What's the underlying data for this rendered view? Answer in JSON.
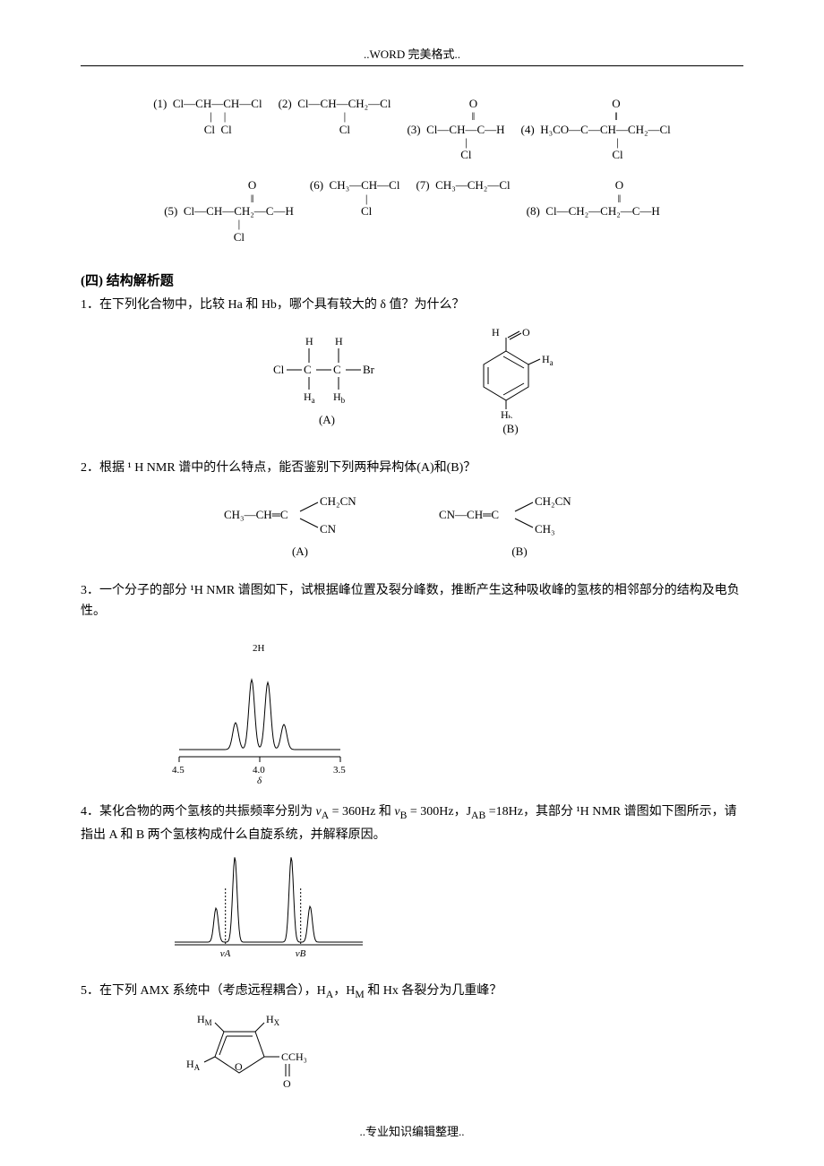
{
  "header": "..WORD 完美格式..",
  "footer": "..专业知识编辑整理..",
  "top_molecules_row1": [
    {
      "num": "(1)",
      "formula": "Cl—CH—CH—Cl\n     |    |\n     Cl   Cl"
    },
    {
      "num": "(2)",
      "formula": "Cl—CH—CH₂—Cl\n     |\n     Cl"
    },
    {
      "num": "(3)",
      "formula": "          O\n          ‖\nCl—CH—C—H\n     |\n     Cl"
    },
    {
      "num": "(4)",
      "formula": "          O\n          ‖\nH₃CO—C—CH—CH₂—Cl\n           |\n           Cl"
    }
  ],
  "top_molecules_row2": [
    {
      "num": "(5)",
      "formula": "               O\n               ‖\nCl—CH—CH₂—C—H\n     |\n     Cl"
    },
    {
      "num": "(6)",
      "formula": "CH₃—CH—Cl\n      |\n      Cl"
    },
    {
      "num": "(7)",
      "formula": "CH₃—CH₂—Cl"
    },
    {
      "num": "(8)",
      "formula": "               O\n               ‖\nCl—CH₂—CH₂—C—H"
    }
  ],
  "section_title": "(四) 结构解析题",
  "q1": "1．在下列化合物中，比较 Ha 和 Hb，哪个具有较大的 δ 值？为什么？",
  "q1_label_a": "(A)",
  "q1_label_b": "(B)",
  "q2": "2．根据 ¹ H NMR 谱中的什么特点，能否鉴别下列两种异构体(A)和(B)？",
  "q2_label_a": "(A)",
  "q2_label_b": "(B)",
  "q3": "3．一个分子的部分 ¹H NMR 谱图如下，试根据峰位置及裂分峰数，推断产生这种吸收峰的氢核的相邻部分的结构及电负性。",
  "q3_chart": {
    "peak_label": "2H",
    "xticks": [
      "4.5",
      "4.0",
      "3.5"
    ],
    "xlabel": "δ",
    "peak_positions": [
      3.85,
      3.95,
      4.05,
      4.15
    ],
    "peak_heights": [
      28,
      75,
      78,
      30
    ],
    "colors": {
      "line": "#000000",
      "bg": "#ffffff",
      "axis": "#000000"
    }
  },
  "q4": "4．某化合物的两个氢核的共振频率分别为 νA = 360Hz 和 νB = 300Hz，JAB =18Hz，其部分 ¹H NMR 谱图如下图所示，请指出 A 和 B 两个氢核构成什么自旋系统，并解释原因。",
  "q4_chart": {
    "labels": [
      "νA",
      "νB"
    ],
    "peak_groups": [
      [
        0.22,
        0.32
      ],
      [
        0.62,
        0.72
      ]
    ],
    "peak_heights": [
      [
        38,
        95
      ],
      [
        95,
        40
      ]
    ],
    "colors": {
      "line": "#000000",
      "axis": "#000000"
    }
  },
  "q5": "5．在下列 AMX 系统中（考虑远程耦合），HA，HM 和 Hx 各裂分为几重峰？",
  "q5_mol": {
    "labels": {
      "ha": "HA",
      "hm": "HM",
      "hx": "HX",
      "coch3": "CCH₃",
      "o": "O"
    }
  },
  "styling": {
    "body_font_size": 14,
    "title_font_size": 15,
    "chem_font_size": 13,
    "line_height": 1.7,
    "text_color": "#000000",
    "bg_color": "#ffffff",
    "border_color": "#000000"
  }
}
